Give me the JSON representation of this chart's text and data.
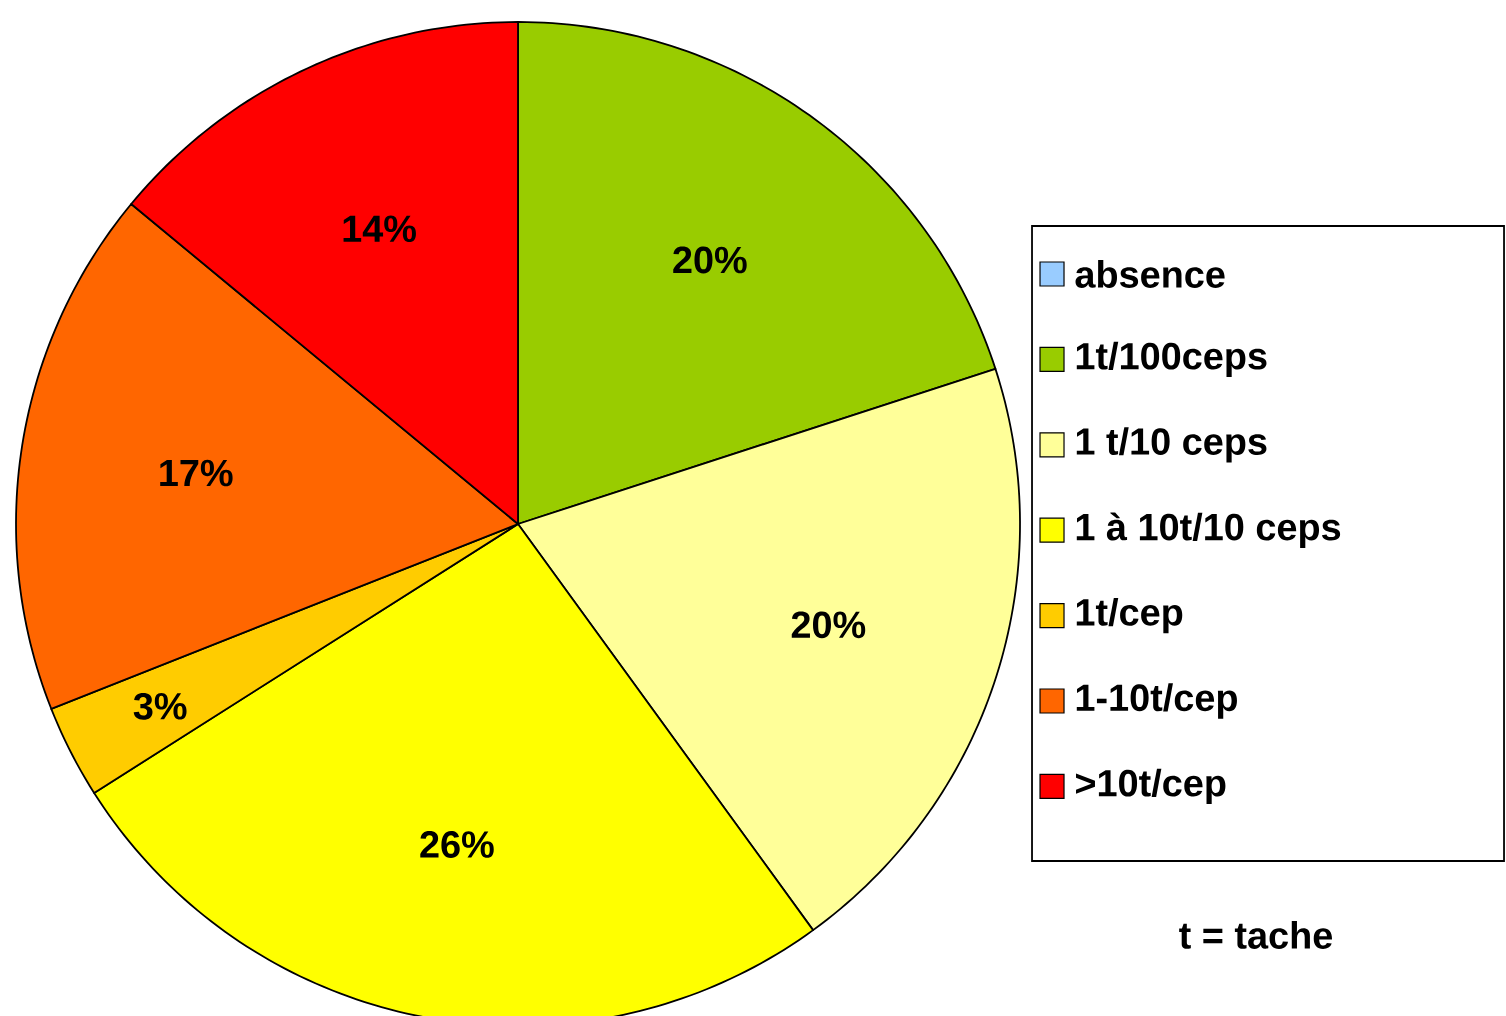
{
  "chart_data": {
    "type": "pie",
    "categories": [
      "absence",
      "1t/100ceps",
      "1 t/10 ceps",
      "1 à 10t/10 ceps",
      "1t/cep",
      "1-10t/cep",
      ">10t/cep"
    ],
    "values": [
      0,
      20,
      20,
      26,
      3,
      17,
      14
    ],
    "value_labels": [
      null,
      "20%",
      "20%",
      "26%",
      "3%",
      "17%",
      "14%"
    ],
    "colors": [
      "#99ccff",
      "#99cc00",
      "#ffff99",
      "#ffff00",
      "#ffcc00",
      "#ff6600",
      "#ff0000"
    ],
    "legend": "right",
    "annotations": [
      "t = tache"
    ]
  }
}
